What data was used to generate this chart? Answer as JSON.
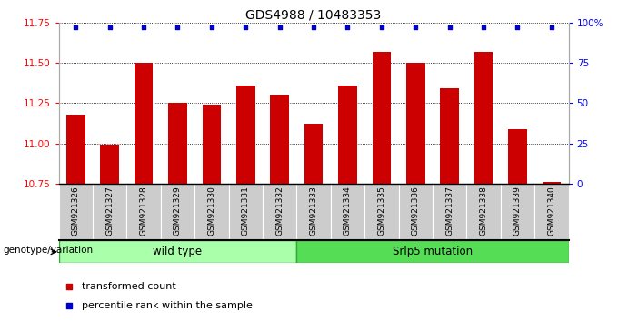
{
  "title": "GDS4988 / 10483353",
  "samples": [
    "GSM921326",
    "GSM921327",
    "GSM921328",
    "GSM921329",
    "GSM921330",
    "GSM921331",
    "GSM921332",
    "GSM921333",
    "GSM921334",
    "GSM921335",
    "GSM921336",
    "GSM921337",
    "GSM921338",
    "GSM921339",
    "GSM921340"
  ],
  "bar_values": [
    11.18,
    10.99,
    11.5,
    11.25,
    11.24,
    11.36,
    11.3,
    11.12,
    11.36,
    11.57,
    11.5,
    11.34,
    11.57,
    11.09,
    10.76
  ],
  "percentile_values": [
    97,
    97,
    97,
    97,
    97,
    97,
    97,
    97,
    97,
    97,
    97,
    97,
    97,
    97,
    97
  ],
  "bar_color": "#cc0000",
  "percentile_color": "#0000cc",
  "ylim_left": [
    10.75,
    11.75
  ],
  "ylim_right": [
    0,
    100
  ],
  "yticks_left": [
    10.75,
    11.0,
    11.25,
    11.5,
    11.75
  ],
  "yticks_right": [
    0,
    25,
    50,
    75,
    100
  ],
  "ytick_labels_right": [
    "0",
    "25",
    "50",
    "75",
    "100%"
  ],
  "groups": [
    {
      "label": "wild type",
      "start": 0,
      "end": 6,
      "color": "#aaffaa",
      "edge_color": "#33aa33"
    },
    {
      "label": "Srlp5 mutation",
      "start": 7,
      "end": 14,
      "color": "#55dd55",
      "edge_color": "#33aa33"
    }
  ],
  "legend_items": [
    {
      "label": "transformed count",
      "color": "#cc0000"
    },
    {
      "label": "percentile rank within the sample",
      "color": "#0000cc"
    }
  ],
  "genotype_label": "genotype/variation",
  "title_fontsize": 10,
  "tick_fontsize": 7.5,
  "label_fontsize": 6.5,
  "bar_width": 0.55
}
